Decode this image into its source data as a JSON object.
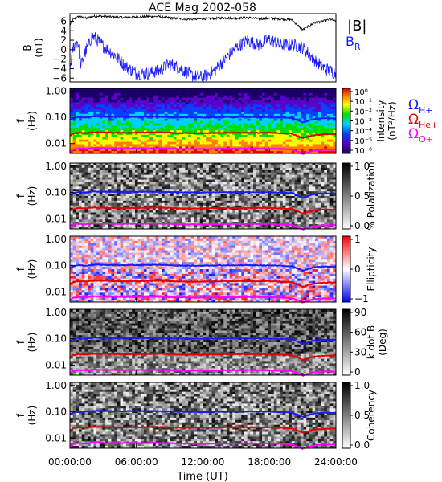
{
  "title": "ACE Mag 2002-058",
  "xlabel": "Time (UT)",
  "x_ticks": [
    "00:00:00",
    "06:00:00",
    "12:00:00",
    "18:00:00",
    "24:00:00"
  ],
  "freq_ticks": [
    "1.00",
    "0.10",
    "0.01"
  ],
  "freq_ylabel": [
    "f",
    "(Hz)"
  ],
  "colors": {
    "b_total": "#000000",
    "b_r": "#1a1aff",
    "omega_h": "#1a1aff",
    "omega_he": "#e60000",
    "omega_o": "#ff00ff"
  },
  "chart_data": [
    {
      "type": "line",
      "panel": "magnetic-field",
      "ylabel": [
        "B",
        "(nT)"
      ],
      "yticks": [
        "6",
        "4",
        "2",
        "0",
        "−2",
        "−4",
        "−6"
      ],
      "ylim": [
        -6.8,
        7.6
      ],
      "xlim": [
        "00:00:00",
        "24:00:00"
      ],
      "legend": [
        {
          "label": "|B|",
          "color": "#000000"
        },
        {
          "label": "B",
          "sub": "R",
          "color": "#1a1aff"
        }
      ],
      "series": [
        {
          "name": "|B|",
          "color": "#000000",
          "x_hours": [
            0,
            0.3,
            0.8,
            1.5,
            2,
            2.5,
            3,
            4,
            5,
            6,
            7,
            8,
            9,
            10,
            11,
            12,
            13,
            14,
            15,
            16,
            17,
            18,
            19,
            20,
            21,
            22,
            23,
            23.5,
            24
          ],
          "values": [
            5.2,
            6.4,
            7.0,
            6.6,
            7.0,
            7.1,
            7.0,
            6.9,
            6.8,
            6.9,
            7.0,
            7.0,
            6.7,
            6.5,
            6.4,
            6.5,
            6.6,
            6.7,
            6.6,
            6.8,
            6.5,
            6.6,
            6.5,
            6.3,
            4.2,
            5.6,
            6.1,
            6.4,
            6.0
          ]
        },
        {
          "name": "B_R",
          "color": "#1a1aff",
          "x_hours": [
            0,
            0.3,
            0.7,
            1.0,
            1.3,
            1.7,
            2.0,
            2.5,
            3,
            4,
            5,
            6,
            7,
            8,
            9,
            10,
            11,
            12,
            13,
            14,
            15,
            16,
            17,
            18,
            19,
            20,
            21,
            22,
            23,
            24
          ],
          "values": [
            -4.0,
            0.5,
            2.0,
            -3.5,
            -1.0,
            1.0,
            3.0,
            2.0,
            0.8,
            -1.0,
            -3.5,
            -5.0,
            -5.0,
            -4.5,
            -3.0,
            -4.0,
            -5.5,
            -5.8,
            -4.5,
            -2.0,
            0.5,
            2.0,
            1.0,
            2.2,
            1.0,
            1.0,
            0.5,
            -2.0,
            -4.0,
            -5.0
          ]
        }
      ]
    },
    {
      "type": "heatmap",
      "panel": "power-spectral-density",
      "colorbar_label": [
        "Intensity",
        "(nT²/Hz)"
      ],
      "colorbar_ticks": [
        "10⁰",
        "10⁻¹",
        "10⁻²",
        "10⁻³",
        "10⁻⁴",
        "10⁻⁵",
        "10⁻⁶"
      ],
      "zlim": [
        1e-06,
        1
      ],
      "scale": "log",
      "legend": [
        {
          "label": "Ω",
          "sub": "H+",
          "color": "#1a1aff"
        },
        {
          "label": "Ω",
          "sub": "He+",
          "color": "#e60000"
        },
        {
          "label": "Ω",
          "sub": "O+",
          "color": "#ff00ff"
        }
      ]
    },
    {
      "type": "heatmap",
      "panel": "percent-polarization",
      "colorbar_label": [
        "% Polarization"
      ],
      "colorbar_ticks": [
        "1.0",
        "0.5",
        "0.0"
      ],
      "zlim": [
        0,
        1
      ]
    },
    {
      "type": "heatmap",
      "panel": "ellipticity",
      "colorbar_label": [
        "Ellipticity"
      ],
      "colorbar_ticks": [
        "1",
        "0",
        "−1"
      ],
      "zlim": [
        -1,
        1
      ]
    },
    {
      "type": "heatmap",
      "panel": "k-dot-b",
      "colorbar_label": [
        "k dot B",
        "(Deg)"
      ],
      "colorbar_ticks": [
        "90",
        "60",
        "30",
        "0"
      ],
      "zlim": [
        0,
        90
      ]
    },
    {
      "type": "heatmap",
      "panel": "coherency",
      "colorbar_label": [
        "Coherency"
      ],
      "colorbar_ticks": [
        "1.0",
        "0.5",
        "0.0"
      ],
      "zlim": [
        0,
        1
      ]
    }
  ],
  "gyrofrequencies_hz": {
    "x_hours": [
      0,
      0.3,
      0.8,
      1.5,
      2,
      2.5,
      3,
      4,
      6,
      8,
      10,
      12,
      14,
      16,
      18,
      20,
      21,
      22,
      23,
      24
    ],
    "omega_h": [
      0.08,
      0.095,
      0.105,
      0.1,
      0.108,
      0.11,
      0.107,
      0.106,
      0.106,
      0.107,
      0.101,
      0.1,
      0.103,
      0.104,
      0.102,
      0.096,
      0.064,
      0.086,
      0.093,
      0.092
    ],
    "omega_he": [
      0.02,
      0.024,
      0.026,
      0.025,
      0.027,
      0.027,
      0.027,
      0.026,
      0.026,
      0.027,
      0.025,
      0.025,
      0.026,
      0.026,
      0.026,
      0.024,
      0.016,
      0.021,
      0.023,
      0.023
    ],
    "omega_o": [
      0.005,
      0.006,
      0.0066,
      0.0063,
      0.0068,
      0.0069,
      0.0067,
      0.0066,
      0.0066,
      0.0067,
      0.0063,
      0.0062,
      0.0064,
      0.0065,
      0.0064,
      0.006,
      0.004,
      0.0054,
      0.0058,
      0.0058
    ]
  }
}
